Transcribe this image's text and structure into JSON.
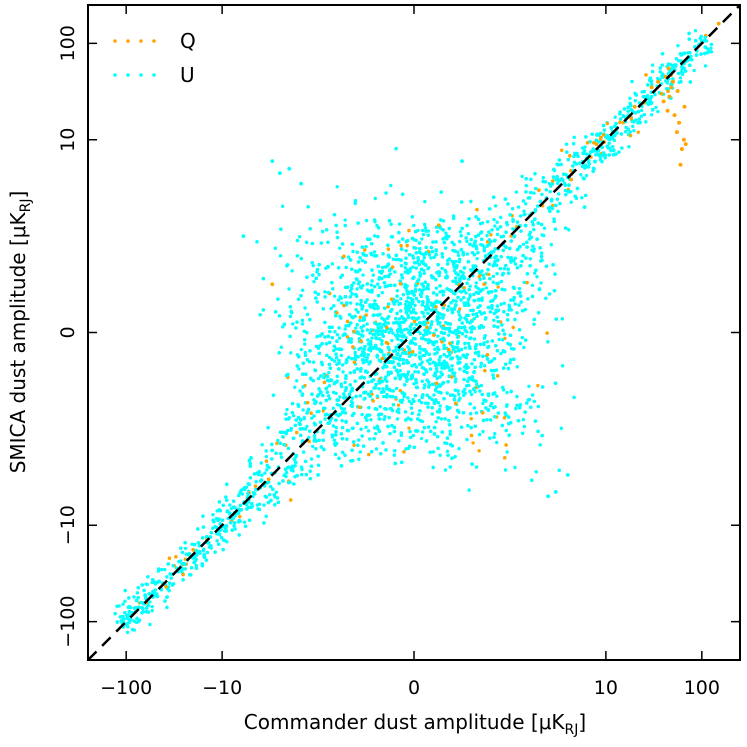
{
  "chart_data": {
    "type": "scatter",
    "xlabel": "Commander dust amplitude [μK",
    "xlabel_sub": "RJ",
    "xlabel_close": "]",
    "ylabel": "SMICA dust amplitude [μK",
    "ylabel_sub": "RJ",
    "ylabel_close": "]",
    "scale": "symlog",
    "xlim": [
      -250,
      250
    ],
    "ylim": [
      -250,
      250
    ],
    "x_ticks": [
      {
        "value": -100,
        "label": "−100"
      },
      {
        "value": -10,
        "label": "−10"
      },
      {
        "value": 0,
        "label": "0"
      },
      {
        "value": 10,
        "label": "10"
      },
      {
        "value": 100,
        "label": "100"
      }
    ],
    "y_ticks": [
      {
        "value": -100,
        "label": "−100"
      },
      {
        "value": -10,
        "label": "−10"
      },
      {
        "value": 0,
        "label": "0"
      },
      {
        "value": 10,
        "label": "10"
      },
      {
        "value": 100,
        "label": "100"
      }
    ],
    "legend_position": "top-left",
    "reference_line": {
      "style": "dashed",
      "color": "#000000",
      "relation": "y = x"
    },
    "series": [
      {
        "name": "Q",
        "color": "#ffa500",
        "points": [
          [
            35,
            40
          ],
          [
            38,
            30
          ],
          [
            40,
            25
          ],
          [
            45,
            55
          ],
          [
            48,
            35
          ],
          [
            50,
            40
          ],
          [
            52,
            18
          ],
          [
            55,
            12
          ],
          [
            58,
            15
          ],
          [
            60,
            5.5
          ],
          [
            62,
            8
          ],
          [
            65,
            10
          ],
          [
            66,
            22
          ],
          [
            68,
            9
          ],
          [
            42,
            45
          ],
          [
            44,
            20
          ],
          [
            46,
            28
          ],
          [
            56,
            32
          ],
          [
            30,
            35
          ],
          [
            25,
            28
          ],
          [
            20,
            22
          ],
          [
            -3,
            0.5
          ],
          [
            2,
            3
          ],
          [
            -8,
            -9
          ],
          [
            8,
            9
          ],
          [
            -20,
            -18
          ],
          [
            110,
            120
          ],
          [
            150,
            160
          ]
        ]
      },
      {
        "name": "U",
        "color": "#00ffff",
        "points": [
          [
            -3,
            6
          ],
          [
            -2.5,
            4.5
          ],
          [
            -2,
            5
          ],
          [
            -1.5,
            3.5
          ],
          [
            4,
            -3
          ],
          [
            3,
            -4.5
          ],
          [
            2.5,
            -5
          ],
          [
            -5,
            -2
          ],
          [
            -1,
            -3
          ],
          [
            -6,
            1
          ],
          [
            6,
            2
          ],
          [
            0.5,
            6
          ]
        ]
      }
    ]
  }
}
